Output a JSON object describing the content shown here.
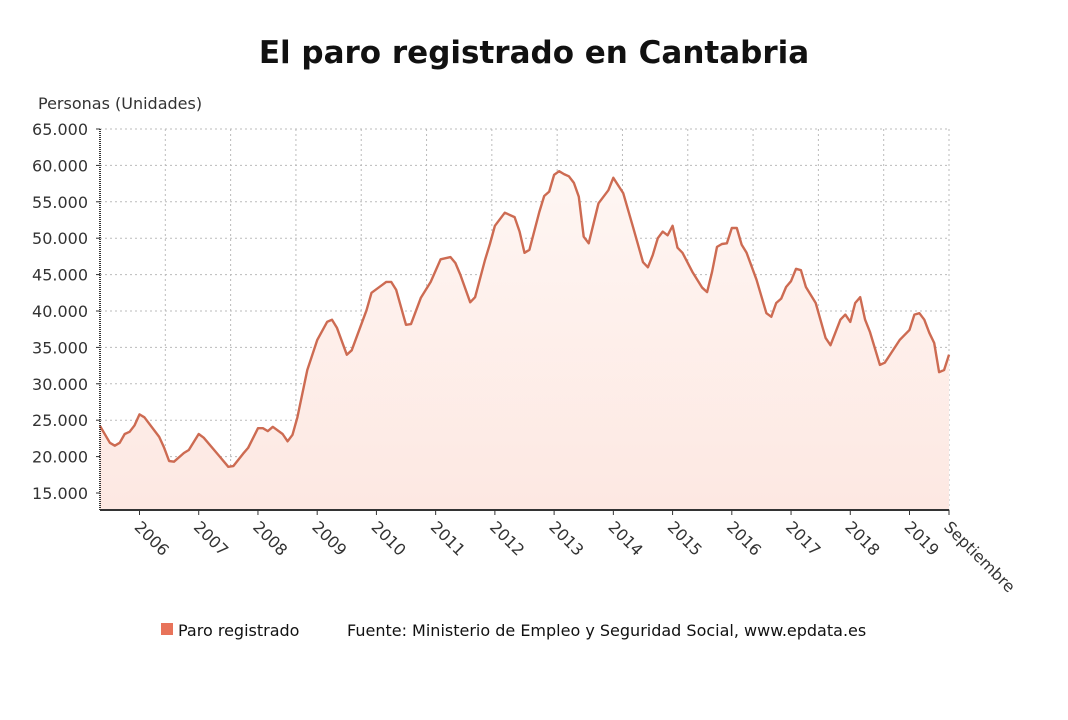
{
  "chart_data": {
    "type": "area",
    "title": "El paro registrado en Cantabria",
    "ylabel": "Personas (Unidades)",
    "xlabel": "",
    "ylim": [
      12700,
      65000
    ],
    "yticks": [
      15000,
      20000,
      25000,
      30000,
      35000,
      40000,
      45000,
      50000,
      55000,
      60000,
      65000
    ],
    "ytick_labels": [
      "15.000",
      "20.000",
      "25.000",
      "30.000",
      "35.000",
      "40.000",
      "45.000",
      "50.000",
      "55.000",
      "60.000",
      "65.000"
    ],
    "xrange": [
      "2005-05",
      "2019-09"
    ],
    "xticks": [
      {
        "date": "2006-01",
        "label": "2006"
      },
      {
        "date": "2007-01",
        "label": "2007"
      },
      {
        "date": "2008-01",
        "label": "2008"
      },
      {
        "date": "2009-01",
        "label": "2009"
      },
      {
        "date": "2010-01",
        "label": "2010"
      },
      {
        "date": "2011-01",
        "label": "2011"
      },
      {
        "date": "2012-01",
        "label": "2012"
      },
      {
        "date": "2013-01",
        "label": "2013"
      },
      {
        "date": "2014-01",
        "label": "2014"
      },
      {
        "date": "2015-01",
        "label": "2015"
      },
      {
        "date": "2016-01",
        "label": "2016"
      },
      {
        "date": "2017-01",
        "label": "2017"
      },
      {
        "date": "2018-01",
        "label": "2018"
      },
      {
        "date": "2019-01",
        "label": "2019"
      },
      {
        "date": "2019-09",
        "label": "Septiembre"
      }
    ],
    "grid": true,
    "legend_position": "bottom",
    "series": [
      {
        "name": "Paro registrado",
        "color": "#cd6b52",
        "legend_color": "#e8735a",
        "fill_color": "#fde8e2",
        "points": [
          [
            "2005-05",
            24200
          ],
          [
            "2005-07",
            21900
          ],
          [
            "2005-08",
            21500
          ],
          [
            "2005-09",
            21900
          ],
          [
            "2005-10",
            23100
          ],
          [
            "2005-11",
            23400
          ],
          [
            "2005-12",
            24300
          ],
          [
            "2006-01",
            25800
          ],
          [
            "2006-02",
            25400
          ],
          [
            "2006-05",
            22700
          ],
          [
            "2006-06",
            21200
          ],
          [
            "2006-07",
            19400
          ],
          [
            "2006-08",
            19300
          ],
          [
            "2006-10",
            20500
          ],
          [
            "2006-11",
            20900
          ],
          [
            "2007-01",
            23100
          ],
          [
            "2007-02",
            22600
          ],
          [
            "2007-05",
            20200
          ],
          [
            "2007-07",
            18600
          ],
          [
            "2007-08",
            18700
          ],
          [
            "2007-10",
            20400
          ],
          [
            "2007-11",
            21200
          ],
          [
            "2008-01",
            23900
          ],
          [
            "2008-02",
            23900
          ],
          [
            "2008-03",
            23500
          ],
          [
            "2008-04",
            24100
          ],
          [
            "2008-06",
            23100
          ],
          [
            "2008-07",
            22100
          ],
          [
            "2008-08",
            23000
          ],
          [
            "2008-09",
            25400
          ],
          [
            "2008-11",
            31900
          ],
          [
            "2009-01",
            36000
          ],
          [
            "2009-03",
            38500
          ],
          [
            "2009-04",
            38800
          ],
          [
            "2009-05",
            37700
          ],
          [
            "2009-07",
            34000
          ],
          [
            "2009-08",
            34600
          ],
          [
            "2009-11",
            40100
          ],
          [
            "2009-12",
            42500
          ],
          [
            "2010-03",
            44000
          ],
          [
            "2010-04",
            44000
          ],
          [
            "2010-05",
            42900
          ],
          [
            "2010-07",
            38100
          ],
          [
            "2010-08",
            38200
          ],
          [
            "2010-10",
            41800
          ],
          [
            "2010-12",
            44000
          ],
          [
            "2011-02",
            47100
          ],
          [
            "2011-04",
            47400
          ],
          [
            "2011-05",
            46600
          ],
          [
            "2011-06",
            45000
          ],
          [
            "2011-08",
            41200
          ],
          [
            "2011-09",
            41900
          ],
          [
            "2011-11",
            47000
          ],
          [
            "2011-12",
            49200
          ],
          [
            "2012-01",
            51700
          ],
          [
            "2012-03",
            53500
          ],
          [
            "2012-05",
            52900
          ],
          [
            "2012-06",
            50900
          ],
          [
            "2012-07",
            48000
          ],
          [
            "2012-08",
            48400
          ],
          [
            "2012-10",
            53600
          ],
          [
            "2012-11",
            55800
          ],
          [
            "2012-12",
            56400
          ],
          [
            "2013-01",
            58700
          ],
          [
            "2013-02",
            59200
          ],
          [
            "2013-03",
            58800
          ],
          [
            "2013-04",
            58500
          ],
          [
            "2013-05",
            57600
          ],
          [
            "2013-06",
            55700
          ],
          [
            "2013-07",
            50200
          ],
          [
            "2013-08",
            49300
          ],
          [
            "2013-10",
            54800
          ],
          [
            "2013-12",
            56600
          ],
          [
            "2014-01",
            58300
          ],
          [
            "2014-03",
            56200
          ],
          [
            "2014-05",
            51500
          ],
          [
            "2014-07",
            46700
          ],
          [
            "2014-08",
            46000
          ],
          [
            "2014-09",
            47700
          ],
          [
            "2014-10",
            50000
          ],
          [
            "2014-11",
            50900
          ],
          [
            "2014-12",
            50400
          ],
          [
            "2015-01",
            51700
          ],
          [
            "2015-02",
            48700
          ],
          [
            "2015-03",
            48000
          ],
          [
            "2015-05",
            45400
          ],
          [
            "2015-07",
            43200
          ],
          [
            "2015-08",
            42600
          ],
          [
            "2015-09",
            45400
          ],
          [
            "2015-10",
            48800
          ],
          [
            "2015-11",
            49200
          ],
          [
            "2015-12",
            49300
          ],
          [
            "2016-01",
            51400
          ],
          [
            "2016-02",
            51400
          ],
          [
            "2016-03",
            49100
          ],
          [
            "2016-04",
            48000
          ],
          [
            "2016-06",
            44300
          ],
          [
            "2016-08",
            39700
          ],
          [
            "2016-09",
            39200
          ],
          [
            "2016-10",
            41100
          ],
          [
            "2016-11",
            41700
          ],
          [
            "2016-12",
            43300
          ],
          [
            "2017-01",
            44100
          ],
          [
            "2017-02",
            45800
          ],
          [
            "2017-03",
            45600
          ],
          [
            "2017-04",
            43300
          ],
          [
            "2017-06",
            41100
          ],
          [
            "2017-08",
            36300
          ],
          [
            "2017-09",
            35300
          ],
          [
            "2017-11",
            38800
          ],
          [
            "2017-12",
            39500
          ],
          [
            "2018-01",
            38500
          ],
          [
            "2018-02",
            41100
          ],
          [
            "2018-03",
            41900
          ],
          [
            "2018-04",
            38800
          ],
          [
            "2018-05",
            37100
          ],
          [
            "2018-07",
            32600
          ],
          [
            "2018-08",
            32900
          ],
          [
            "2018-11",
            36000
          ],
          [
            "2019-01",
            37400
          ],
          [
            "2019-02",
            39500
          ],
          [
            "2019-03",
            39700
          ],
          [
            "2019-04",
            38800
          ],
          [
            "2019-05",
            37000
          ],
          [
            "2019-06",
            35600
          ],
          [
            "2019-07",
            31600
          ],
          [
            "2019-08",
            31900
          ],
          [
            "2019-09",
            34000
          ]
        ]
      }
    ],
    "source": "Fuente: Ministerio de Empleo y Seguridad Social, www.epdata.es"
  }
}
